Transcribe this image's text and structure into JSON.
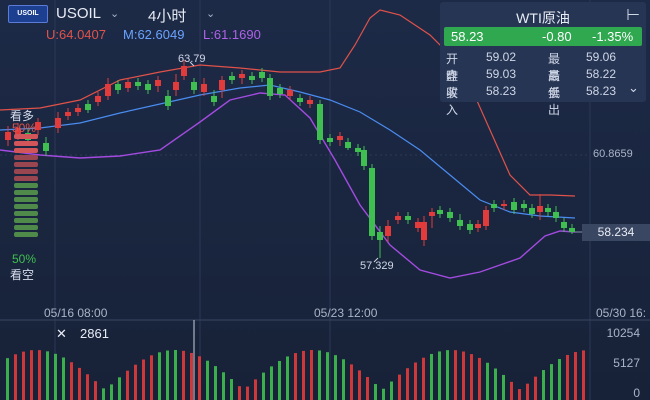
{
  "header": {
    "logo_text": "USOIL",
    "symbol": "USOIL",
    "symbol_chevron": "chevron-down-icon",
    "timeframe": "4小时",
    "timeframe_chevron": "chevron-down-icon",
    "indicator_upper": "U:64.0407",
    "indicator_mid": "M:62.6049",
    "indicator_lower": "L:61.1690"
  },
  "quote_panel": {
    "title": "WTI原油",
    "menu_icon": "exit-icon",
    "price": "58.23",
    "change": "-0.80",
    "change_pct": "-1.35%",
    "rows": [
      {
        "label_a": "开盘",
        "value_a": "59.02",
        "label_b": "最高",
        "value_b": "59.06"
      },
      {
        "label_a": "昨收",
        "value_a": "59.03",
        "label_b": "最低",
        "value_b": "58.22"
      },
      {
        "label_a": "买入",
        "value_a": "58.23",
        "label_b": "卖出",
        "value_b": "58.23"
      }
    ],
    "expand_icon": "chevron-down-icon"
  },
  "sentiment": {
    "long_label": "看多",
    "long_pct": "50%",
    "short_pct": "50%",
    "short_label": "看空"
  },
  "price_axis": {
    "mid_level": "60.8659",
    "current_price": "58.234"
  },
  "annotations": {
    "high_label": "63.79",
    "low_label": "57.329"
  },
  "time_axis": [
    "05/16 08:00",
    "05/23 12:00",
    "05/30 16:"
  ],
  "volume": {
    "cursor_icon": "close-icon",
    "cursor_value": "2861",
    "axis": [
      "10254",
      "5127",
      "0"
    ]
  },
  "colors": {
    "up": "#e23b3b",
    "down": "#3fbf4f",
    "upper_band": "#e0524a",
    "mid_band": "#4a8cf0",
    "lower_band": "#a34be0",
    "background": "#1b2640",
    "panel": "#263554",
    "badge_green": "#2fa84f"
  }
}
